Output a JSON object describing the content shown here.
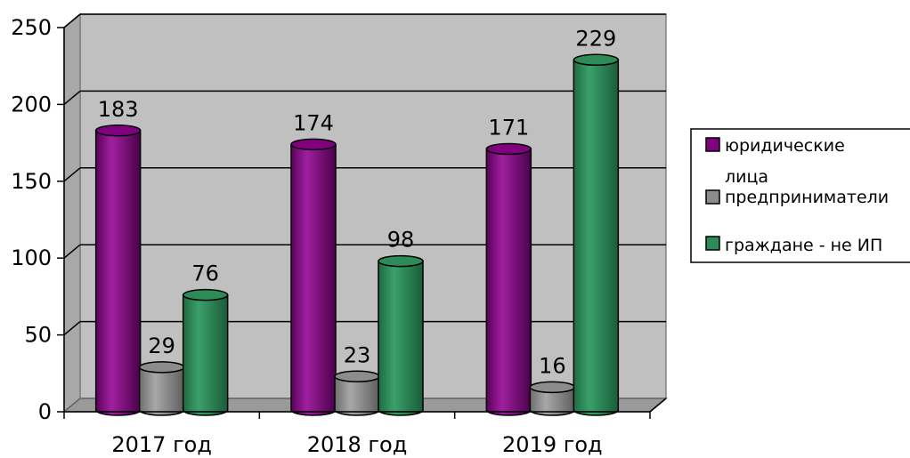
{
  "chart_data": {
    "type": "bar",
    "categories": [
      "2017 год",
      "2018 год",
      "2019 год"
    ],
    "series": [
      {
        "name": "юридические лица",
        "values": [
          183,
          174,
          171
        ],
        "color": "#800080"
      },
      {
        "name": "предприниматели",
        "values": [
          29,
          23,
          16
        ],
        "color": "#8c8c8c"
      },
      {
        "name": "граждане - не ИП",
        "values": [
          76,
          98,
          229
        ],
        "color": "#2e8b57"
      }
    ],
    "ylim": [
      0,
      250
    ],
    "yticks": [
      "0",
      "50",
      "100",
      "150",
      "200",
      "250"
    ],
    "grid": true,
    "legend": "right",
    "plot_background": "#c0c0c0"
  }
}
